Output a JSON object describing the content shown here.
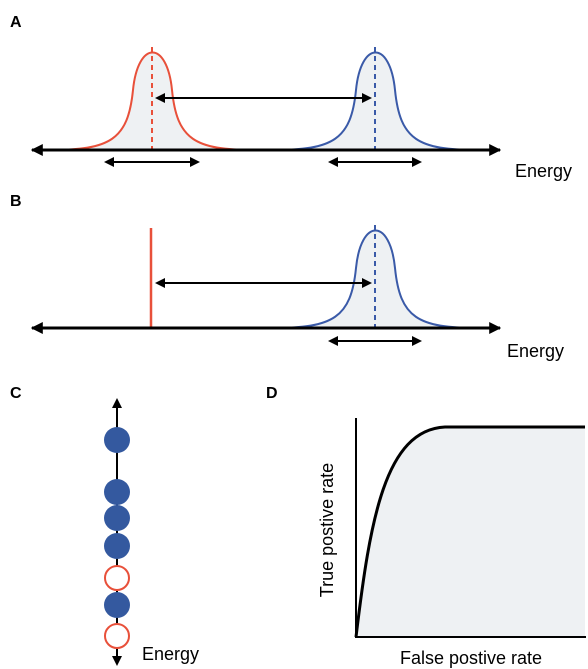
{
  "panels": [
    {
      "label": "A",
      "axis_label": "Energy"
    },
    {
      "label": "B",
      "axis_label": "Energy"
    },
    {
      "label": "C",
      "axis_label": "Energy"
    },
    {
      "label": "D",
      "y_axis_label": "True postive rate",
      "x_axis_label": "False postive rate"
    }
  ]
}
